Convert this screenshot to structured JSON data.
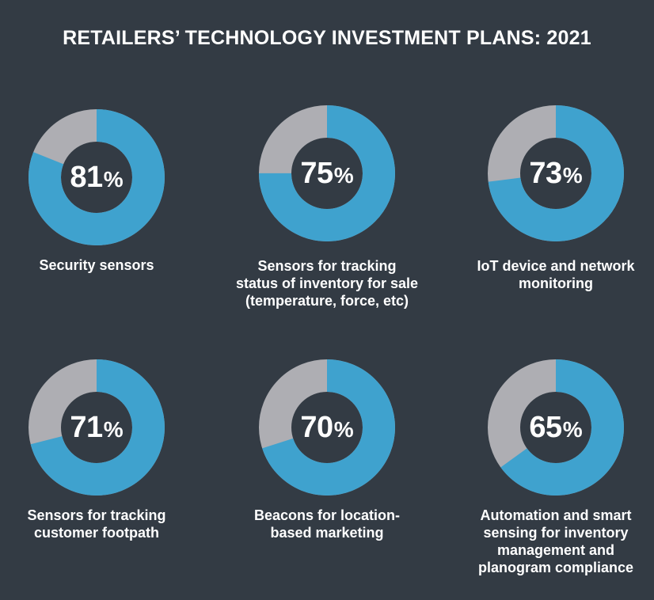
{
  "title": "RETAILERS’ TECHNOLOGY INVESTMENT PLANS: 2021",
  "colors": {
    "background": "#333b44",
    "filled": "#3fa2ce",
    "remainder": "#aeaeb3",
    "text": "#ffffff"
  },
  "chart_data": [
    {
      "type": "pie",
      "value_label": "81",
      "percent_sign": "%",
      "values": [
        81,
        19
      ],
      "label_lines": [
        "Security sensors"
      ]
    },
    {
      "type": "pie",
      "value_label": "75",
      "percent_sign": "%",
      "values": [
        75,
        25
      ],
      "label_lines": [
        "Sensors for tracking",
        "status of inventory for sale",
        "(temperature, force, etc)"
      ]
    },
    {
      "type": "pie",
      "value_label": "73",
      "percent_sign": "%",
      "values": [
        73,
        27
      ],
      "label_lines": [
        "IoT device and network",
        "monitoring"
      ]
    },
    {
      "type": "pie",
      "value_label": "71",
      "percent_sign": "%",
      "values": [
        71,
        29
      ],
      "label_lines": [
        "Sensors for tracking",
        "customer footpath"
      ]
    },
    {
      "type": "pie",
      "value_label": "70",
      "percent_sign": "%",
      "values": [
        70,
        30
      ],
      "label_lines": [
        "Beacons for location-",
        "based marketing"
      ]
    },
    {
      "type": "pie",
      "value_label": "65",
      "percent_sign": "%",
      "values": [
        65,
        35
      ],
      "label_lines": [
        "Automation and smart",
        "sensing for inventory",
        "management and",
        "planogram compliance"
      ]
    }
  ]
}
